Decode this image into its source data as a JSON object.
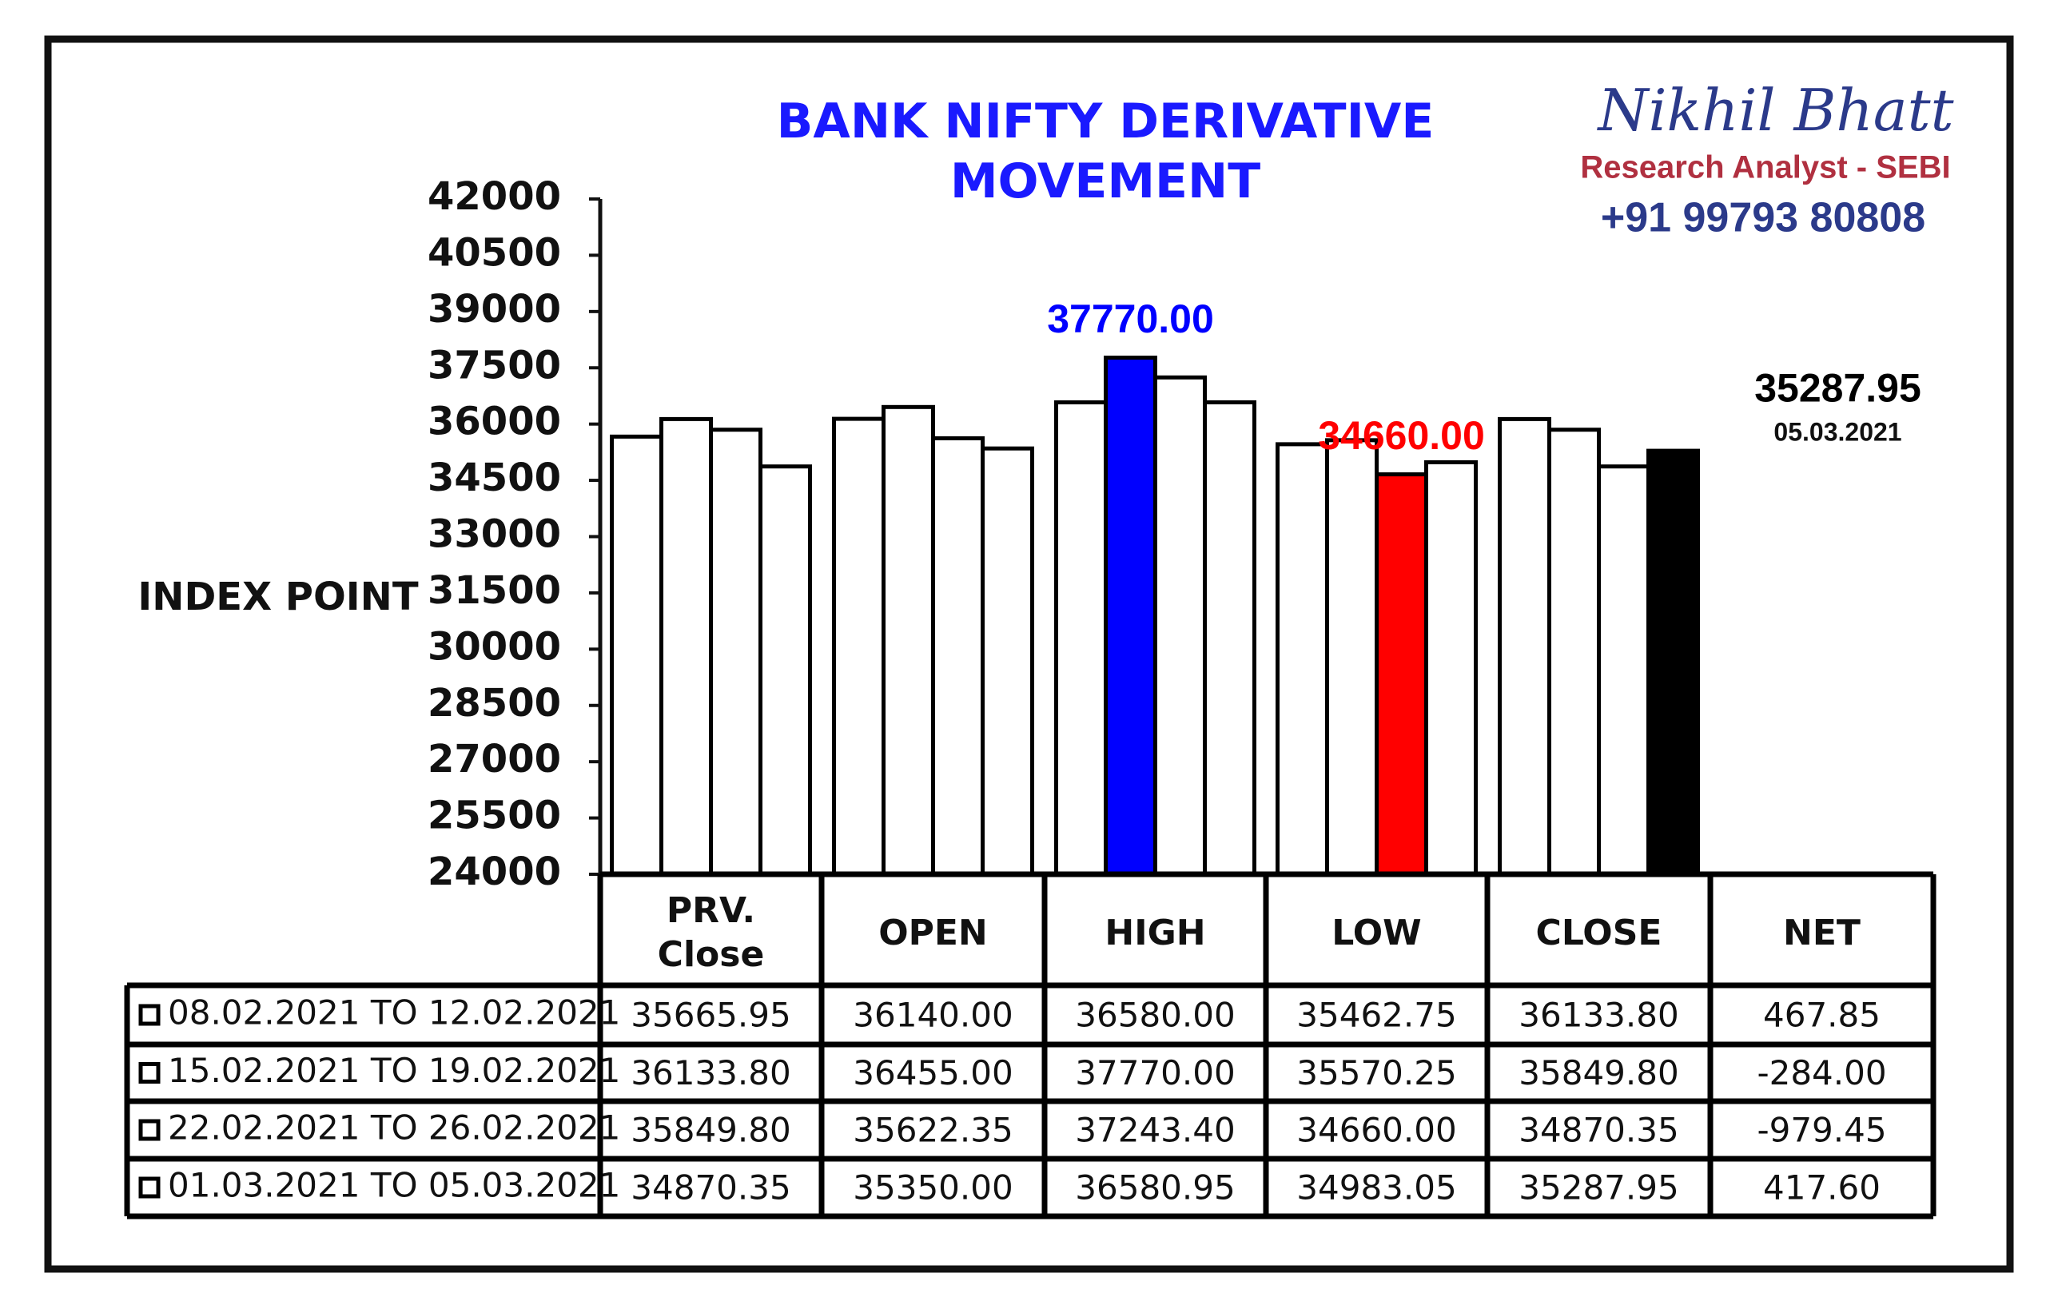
{
  "chart_data": {
    "type": "bar",
    "title": "BANK NIFTY DERIVATIVE MOVEMENT",
    "y_label": "INDEX POINT",
    "categories": [
      "PRV. Close",
      "OPEN",
      "HIGH",
      "LOW",
      "CLOSE"
    ],
    "series": [
      {
        "name": "08.02.2021 TO 12.02.2021",
        "colors": [
          "#ffffff",
          "#ffffff",
          "#ffffff",
          "#ffffff",
          "#ffffff"
        ],
        "values": [
          35665.95,
          36140.0,
          36580.0,
          35462.75,
          36133.8
        ],
        "value_labels": [
          null,
          null,
          null,
          null,
          null
        ]
      },
      {
        "name": "15.02.2021 TO 19.02.2021",
        "colors": [
          "#ffffff",
          "#ffffff",
          "#0000ff",
          "#ffffff",
          "#ffffff"
        ],
        "values": [
          36133.8,
          36455.0,
          37770.0,
          35570.25,
          35849.8
        ],
        "value_labels": [
          null,
          null,
          "37770.00",
          null,
          null
        ]
      },
      {
        "name": "22.02.2021 TO 26.02.2021",
        "colors": [
          "#ffffff",
          "#ffffff",
          "#ffffff",
          "#ff0000",
          "#ffffff"
        ],
        "values": [
          35849.8,
          35622.35,
          37243.4,
          34660.0,
          34870.35
        ],
        "value_labels": [
          null,
          null,
          null,
          "34660.00",
          null
        ]
      },
      {
        "name": "01.03.2021 TO 05.03.2021",
        "colors": [
          "#ffffff",
          "#ffffff",
          "#ffffff",
          "#ffffff",
          "#000000"
        ],
        "values": [
          34870.35,
          35350.0,
          36580.95,
          34983.05,
          35287.95
        ],
        "value_labels": [
          null,
          null,
          null,
          null,
          "35287.95"
        ]
      }
    ],
    "date_label": "05.03.2021",
    "ylim": [
      24000,
      42000
    ],
    "yticks": [
      24000,
      25500,
      27000,
      28500,
      30000,
      31500,
      33000,
      34500,
      36000,
      37500,
      39000,
      40500,
      42000
    ],
    "grid": false
  },
  "table": {
    "net_header": "NET",
    "rows": [
      [
        "35665.95",
        "36140.00",
        "36580.00",
        "35462.75",
        "36133.80",
        "467.85"
      ],
      [
        "36133.80",
        "36455.00",
        "37770.00",
        "35570.25",
        "35849.80",
        "-284.00"
      ],
      [
        "35849.80",
        "35622.35",
        "37243.40",
        "34660.00",
        "34870.35",
        "-979.45"
      ],
      [
        "34870.35",
        "35350.00",
        "36580.95",
        "34983.05",
        "35287.95",
        "417.60"
      ]
    ]
  },
  "branding": {
    "name": "Nikhil Bhatt",
    "role": "Research Analyst - SEBI",
    "phone": "+91 99793 80808"
  }
}
